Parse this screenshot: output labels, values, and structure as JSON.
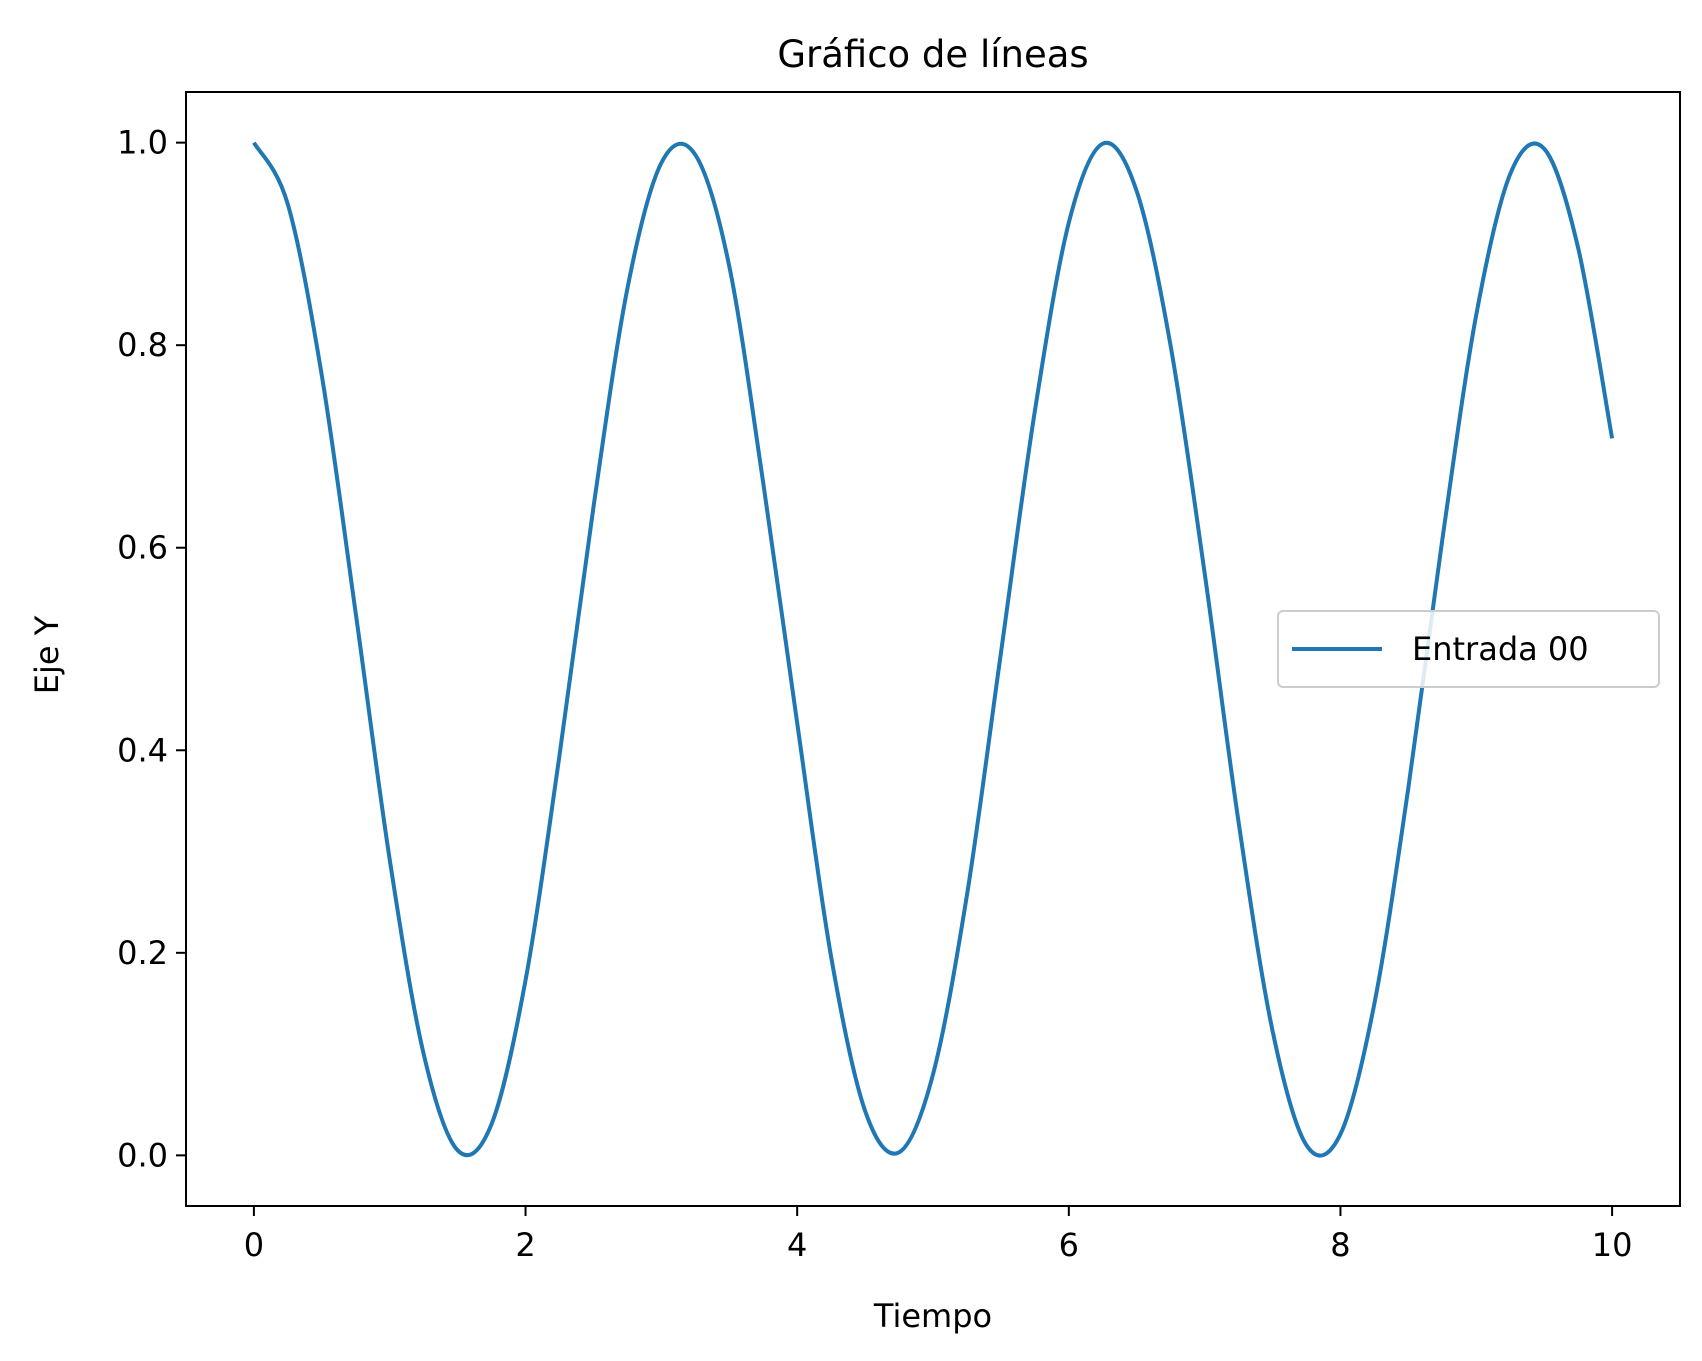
{
  "chart_data": {
    "type": "line",
    "title": "Gráfico de líneas",
    "xlabel": "Tiempo",
    "ylabel": "Eje Y",
    "xlim": [
      -0.5,
      10.5
    ],
    "ylim": [
      -0.05,
      1.05
    ],
    "xticks": [
      0,
      2,
      4,
      6,
      8,
      10
    ],
    "xtick_labels": [
      "0",
      "2",
      "4",
      "6",
      "8",
      "10"
    ],
    "yticks": [
      0.0,
      0.2,
      0.4,
      0.6,
      0.8,
      1.0
    ],
    "ytick_labels": [
      "0.0",
      "0.2",
      "0.4",
      "0.6",
      "0.8",
      "1.0"
    ],
    "grid": false,
    "legend_position": "center-right",
    "series": [
      {
        "name": "Entrada 00",
        "color": "#1f77b4",
        "x": [
          0.0,
          0.25,
          0.5,
          0.75,
          1.0,
          1.25,
          1.5,
          1.75,
          2.0,
          2.25,
          2.5,
          2.75,
          3.0,
          3.25,
          3.5,
          3.75,
          4.0,
          4.25,
          4.5,
          4.75,
          5.0,
          5.25,
          5.5,
          5.75,
          6.0,
          6.25,
          6.5,
          6.75,
          7.0,
          7.25,
          7.5,
          7.75,
          8.0,
          8.25,
          8.5,
          8.75,
          9.0,
          9.25,
          9.5,
          9.75,
          10.0
        ],
        "y": [
          1.0,
          0.939,
          0.77,
          0.535,
          0.292,
          0.1,
          0.005,
          0.031,
          0.173,
          0.395,
          0.64,
          0.856,
          0.98,
          0.988,
          0.878,
          0.664,
          0.427,
          0.196,
          0.044,
          0.003,
          0.08,
          0.257,
          0.496,
          0.735,
          0.921,
          0.999,
          0.952,
          0.799,
          0.575,
          0.329,
          0.123,
          0.01,
          0.021,
          0.15,
          0.363,
          0.608,
          0.83,
          0.969,
          0.994,
          0.896,
          0.708
        ]
      }
    ]
  }
}
